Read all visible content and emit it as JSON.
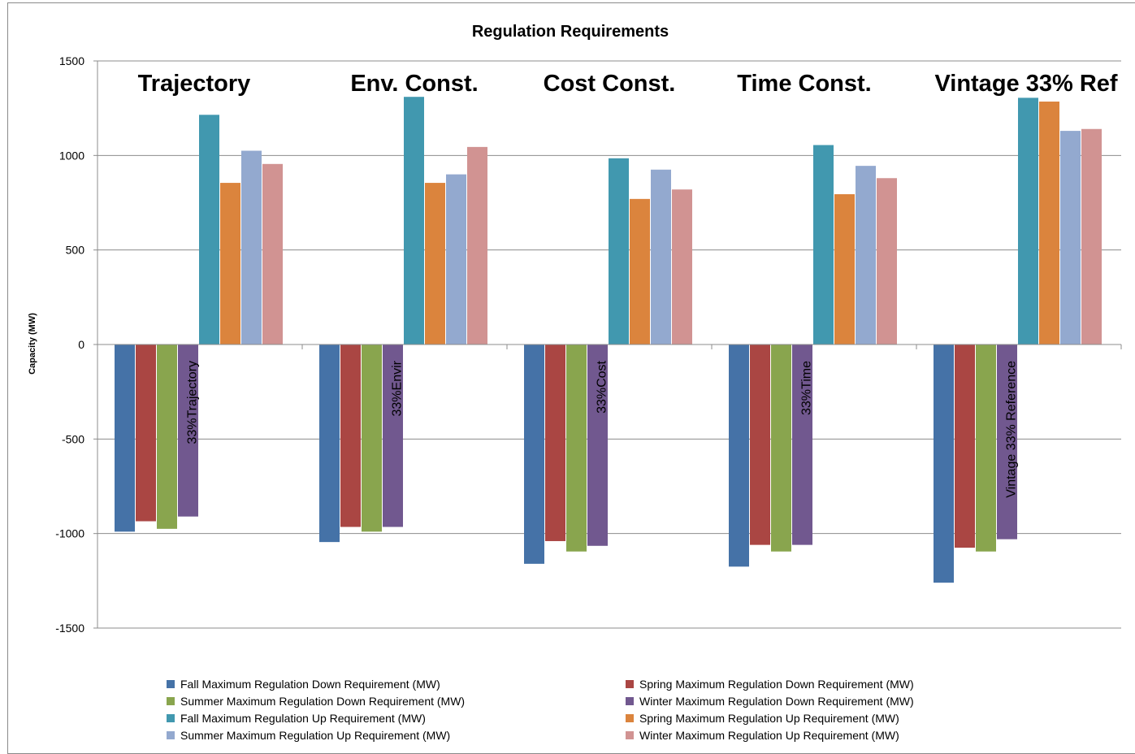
{
  "chart_data": {
    "type": "bar",
    "title": "Regulation Requirements",
    "ylabel": "Capacity (MW)",
    "xlabel": "",
    "ylim": [
      -1500,
      1500
    ],
    "yticks": [
      1500,
      1000,
      500,
      0,
      -500,
      -1000,
      -1500
    ],
    "grid": true,
    "legend_position": "bottom",
    "group_titles": [
      "Trajectory",
      "Env. Const.",
      "Cost Const.",
      "Time Const.",
      "Vintage 33% Ref"
    ],
    "categories": [
      "33%Trajectory",
      "33%Envir",
      "33%Cost",
      "33%Time",
      "Vintage 33% Reference"
    ],
    "series": [
      {
        "name": "Fall Maximum Regulation Down Requirement (MW)",
        "color": "#4572A7",
        "values": [
          -990,
          -1045,
          -1160,
          -1175,
          -1260
        ]
      },
      {
        "name": "Spring Maximum Regulation Down Requirement (MW)",
        "color": "#AA4643",
        "values": [
          -935,
          -965,
          -1040,
          -1060,
          -1075
        ]
      },
      {
        "name": "Summer Maximum Regulation Down Requirement (MW)",
        "color": "#89A54E",
        "values": [
          -975,
          -990,
          -1095,
          -1095,
          -1095
        ]
      },
      {
        "name": "Winter Maximum Regulation Down Requirement (MW)",
        "color": "#71588F",
        "values": [
          -910,
          -965,
          -1065,
          -1060,
          -1030
        ]
      },
      {
        "name": "Fall Maximum Regulation Up Requirement (MW)",
        "color": "#4198AF",
        "values": [
          1215,
          1310,
          985,
          1055,
          1305
        ]
      },
      {
        "name": "Spring Maximum Regulation Up Requirement (MW)",
        "color": "#DB843D",
        "values": [
          855,
          855,
          770,
          795,
          1285
        ]
      },
      {
        "name": "Summer Maximum Regulation Up Requirement (MW)",
        "color": "#93A9CF",
        "values": [
          1025,
          900,
          925,
          945,
          1130
        ]
      },
      {
        "name": "Winter Maximum Regulation Up Requirement (MW)",
        "color": "#D19392",
        "values": [
          955,
          1045,
          820,
          880,
          1140
        ]
      }
    ]
  }
}
